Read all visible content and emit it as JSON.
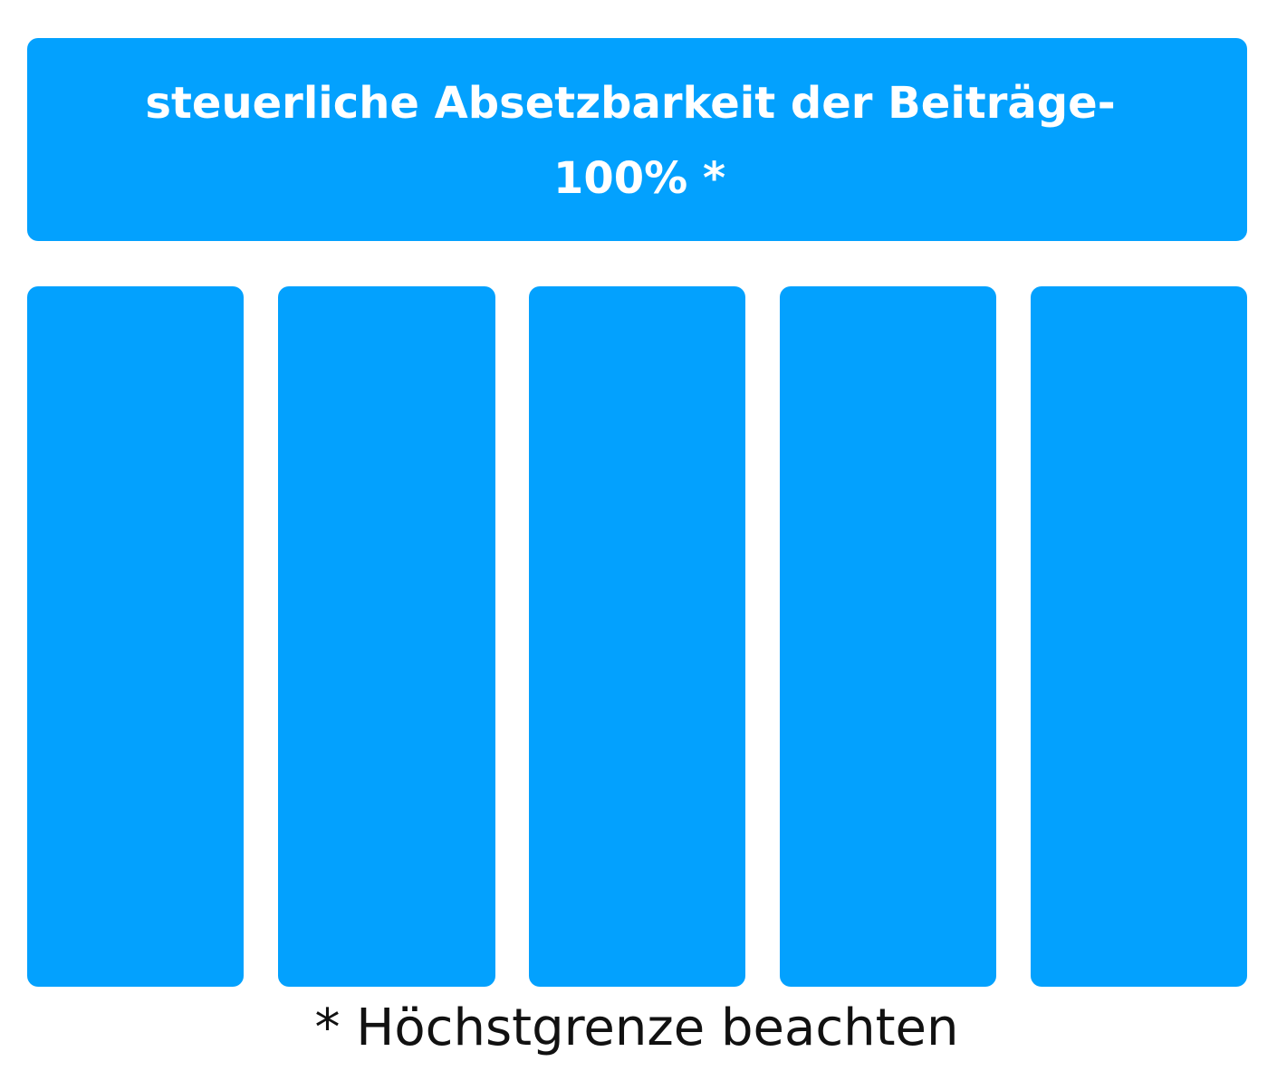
{
  "header": {
    "title_lines": [
      "steuerliche Absetzbarkeit der Beiträge-",
      "100% *"
    ]
  },
  "footnote": "* Höchstgrenze beachten"
}
